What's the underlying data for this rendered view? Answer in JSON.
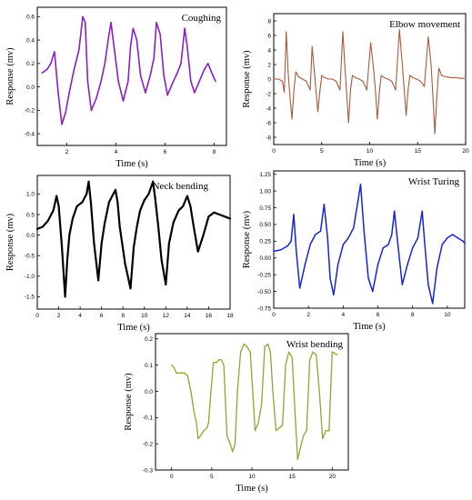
{
  "chart_data": [
    {
      "type": "line",
      "title": "Coughing",
      "xlabel": "Time (s)",
      "ylabel": "Response (mv)",
      "xlim": [
        0.8,
        8.5
      ],
      "ylim": [
        -0.5,
        0.68
      ],
      "xticks": [
        2,
        4,
        6,
        8
      ],
      "yticks": [
        -0.4,
        -0.2,
        0.0,
        0.2,
        0.4,
        0.6
      ],
      "ytick_labels": [
        "-0.4",
        "-0.2",
        "0.0",
        "0.2",
        "0.4",
        "0.6"
      ],
      "color": "#8a1fc9",
      "stroke": 1.6,
      "series": [
        {
          "x": [
            1.0,
            1.2,
            1.35,
            1.5,
            1.65,
            1.8,
            1.95,
            2.1,
            2.3,
            2.5,
            2.65,
            2.75,
            2.85,
            3.0,
            3.2,
            3.4,
            3.55,
            3.7,
            3.8,
            3.95,
            4.1,
            4.3,
            4.5,
            4.6,
            4.7,
            4.85,
            5.0,
            5.2,
            5.4,
            5.55,
            5.65,
            5.8,
            5.95,
            6.1,
            6.3,
            6.5,
            6.65,
            6.8,
            6.9,
            7.05,
            7.2,
            7.4,
            7.6,
            7.75,
            7.9,
            8.05
          ],
          "y": [
            0.12,
            0.15,
            0.2,
            0.3,
            -0.05,
            -0.32,
            -0.22,
            -0.05,
            0.15,
            0.32,
            0.6,
            0.55,
            0.05,
            -0.2,
            -0.1,
            0.05,
            0.2,
            0.42,
            0.55,
            0.3,
            0.05,
            -0.12,
            0.05,
            0.35,
            0.5,
            0.4,
            0.1,
            -0.05,
            0.1,
            0.25,
            0.55,
            0.45,
            0.1,
            -0.07,
            0.03,
            0.12,
            0.2,
            0.5,
            0.35,
            0.05,
            -0.05,
            0.05,
            0.15,
            0.2,
            0.12,
            0.05
          ]
        }
      ]
    },
    {
      "type": "line",
      "title": "Elbow movement",
      "xlabel": "Time (s)",
      "ylabel": "Response (mv)",
      "xlim": [
        0,
        20
      ],
      "ylim": [
        -9,
        9
      ],
      "xticks": [
        0,
        5,
        10,
        15,
        20
      ],
      "yticks": [
        -8,
        -6,
        -4,
        -2,
        0,
        2,
        4,
        6,
        8
      ],
      "ytick_labels": [
        "-8",
        "-6",
        "-4",
        "-2",
        "0",
        "2",
        "4",
        "6",
        "8"
      ],
      "color": "#a65a3a",
      "stroke": 1.1,
      "series": [
        {
          "x": [
            0.0,
            0.5,
            0.9,
            1.1,
            1.3,
            1.5,
            1.7,
            1.9,
            2.1,
            2.3,
            2.6,
            3.0,
            3.4,
            3.8,
            4.0,
            4.2,
            4.4,
            4.6,
            4.8,
            5.0,
            5.3,
            5.7,
            6.1,
            6.5,
            6.9,
            7.2,
            7.4,
            7.6,
            7.8,
            8.0,
            8.2,
            8.5,
            8.9,
            9.3,
            9.7,
            10.1,
            10.4,
            10.6,
            10.8,
            11.0,
            11.2,
            11.5,
            11.9,
            12.3,
            12.7,
            13.1,
            13.4,
            13.6,
            13.8,
            14.0,
            14.2,
            14.5,
            14.9,
            15.3,
            15.7,
            16.1,
            16.4,
            16.6,
            16.8,
            17.0,
            17.2,
            17.5,
            18.0,
            18.5,
            19.0,
            19.5,
            20.0
          ],
          "y": [
            0.0,
            0.0,
            -0.3,
            -1.8,
            6.5,
            1.0,
            -2.5,
            -5.5,
            -1.5,
            1.0,
            0.3,
            0.0,
            -0.3,
            -1.5,
            4.5,
            1.5,
            -1.5,
            -4.5,
            -1.8,
            0.5,
            0.2,
            0.0,
            0.0,
            -0.3,
            -1.5,
            6.5,
            2.0,
            -2.0,
            -6.0,
            -1.5,
            0.5,
            0.2,
            0.0,
            -0.3,
            -1.5,
            5.0,
            1.5,
            -1.5,
            -5.5,
            -1.8,
            0.5,
            0.2,
            0.0,
            -0.3,
            -1.5,
            6.8,
            2.0,
            -1.5,
            -5.0,
            -1.5,
            0.5,
            0.2,
            0.0,
            -0.3,
            -1.0,
            5.8,
            2.0,
            -2.5,
            -7.5,
            -2.5,
            1.5,
            0.5,
            0.3,
            0.2,
            0.2,
            0.1,
            0.1
          ]
        }
      ]
    },
    {
      "type": "line",
      "title": "Neck bending",
      "xlabel": "Time (s)",
      "ylabel": "Response (mv)",
      "xlim": [
        0,
        18
      ],
      "ylim": [
        -1.8,
        1.45
      ],
      "xticks": [
        0,
        2,
        4,
        6,
        8,
        10,
        12,
        14,
        16,
        18
      ],
      "yticks": [
        -1.5,
        -1.0,
        -0.5,
        0.0,
        0.5,
        1.0
      ],
      "ytick_labels": [
        "-1.5",
        "-1.0",
        "-0.5",
        "0.0",
        "0.5",
        "1.0"
      ],
      "color": "#000000",
      "stroke": 2.2,
      "series": [
        {
          "x": [
            0.0,
            0.5,
            1.0,
            1.5,
            1.8,
            2.0,
            2.3,
            2.6,
            2.8,
            3.0,
            3.3,
            3.7,
            4.2,
            4.6,
            4.8,
            5.0,
            5.3,
            5.7,
            6.0,
            6.3,
            6.7,
            7.0,
            7.3,
            7.5,
            7.7,
            8.2,
            8.7,
            9.0,
            9.3,
            9.6,
            10.0,
            10.4,
            10.8,
            11.0,
            11.3,
            11.6,
            12.0,
            12.3,
            12.7,
            13.2,
            13.6,
            14.0,
            14.3,
            14.6,
            15.0,
            15.5,
            16.0,
            16.5,
            17.0,
            17.5,
            18.0
          ],
          "y": [
            0.15,
            0.2,
            0.35,
            0.6,
            0.95,
            0.7,
            -0.3,
            -1.5,
            -0.6,
            0.0,
            0.4,
            0.7,
            0.8,
            1.0,
            1.3,
            0.8,
            -0.2,
            -1.1,
            -0.2,
            0.3,
            0.8,
            0.95,
            1.1,
            0.8,
            0.2,
            -0.7,
            -1.3,
            -0.3,
            0.2,
            0.6,
            0.85,
            1.0,
            1.3,
            0.9,
            0.2,
            -0.6,
            -1.2,
            -0.2,
            0.3,
            0.6,
            0.7,
            0.95,
            0.7,
            0.2,
            -0.4,
            0.0,
            0.45,
            0.55,
            0.5,
            0.45,
            0.4
          ]
        }
      ]
    },
    {
      "type": "line",
      "title": "Wrist Turing",
      "xlabel": "Time (s)",
      "ylabel": "Response (mv)",
      "xlim": [
        0,
        11
      ],
      "ylim": [
        -0.75,
        1.3
      ],
      "xticks": [
        0,
        2,
        4,
        6,
        8,
        10
      ],
      "yticks": [
        -0.75,
        -0.5,
        -0.25,
        0.0,
        0.25,
        0.5,
        0.75,
        1.0,
        1.25
      ],
      "ytick_labels": [
        "-0.75",
        "-0.50",
        "-0.25",
        "0.00",
        "0.25",
        "0.50",
        "0.75",
        "1.00",
        "1.25"
      ],
      "color": "#1424d8",
      "stroke": 1.5,
      "series": [
        {
          "x": [
            0.0,
            0.4,
            0.8,
            1.0,
            1.15,
            1.3,
            1.5,
            1.8,
            2.1,
            2.4,
            2.7,
            2.9,
            3.1,
            3.25,
            3.45,
            3.7,
            4.0,
            4.3,
            4.6,
            4.85,
            5.0,
            5.2,
            5.45,
            5.7,
            6.0,
            6.3,
            6.6,
            6.8,
            6.95,
            7.15,
            7.4,
            7.7,
            8.0,
            8.3,
            8.55,
            8.7,
            8.9,
            9.15,
            9.4,
            9.7,
            10.0,
            10.3,
            10.6,
            10.9,
            11.0
          ],
          "y": [
            0.1,
            0.12,
            0.18,
            0.25,
            0.65,
            0.1,
            -0.45,
            -0.1,
            0.2,
            0.35,
            0.4,
            0.8,
            0.3,
            -0.3,
            -0.55,
            -0.1,
            0.2,
            0.3,
            0.45,
            0.85,
            1.1,
            0.4,
            -0.3,
            -0.5,
            -0.1,
            0.15,
            0.2,
            0.35,
            0.7,
            0.2,
            -0.4,
            -0.1,
            0.15,
            0.3,
            0.7,
            0.2,
            -0.4,
            -0.68,
            -0.15,
            0.2,
            0.3,
            0.35,
            0.3,
            0.25,
            0.22
          ]
        }
      ]
    },
    {
      "type": "line",
      "title": "Wrist bending",
      "xlabel": "Time (s)",
      "ylabel": "Response (mv)",
      "xlim": [
        -2,
        22
      ],
      "ylim": [
        -0.3,
        0.22
      ],
      "xticks": [
        0,
        5,
        10,
        15,
        20
      ],
      "yticks": [
        -0.3,
        -0.2,
        -0.1,
        0.0,
        0.1,
        0.2
      ],
      "ytick_labels": [
        "-0.3",
        "-0.2",
        "-0.1",
        "0.0",
        "0.1",
        "0.2"
      ],
      "color": "#9aa030",
      "stroke": 1.3,
      "series": [
        {
          "x": [
            0.0,
            0.3,
            0.6,
            1.2,
            1.6,
            2.0,
            2.4,
            2.8,
            3.1,
            3.3,
            3.6,
            4.0,
            4.4,
            4.6,
            4.9,
            5.2,
            5.6,
            5.9,
            6.2,
            6.5,
            6.9,
            7.3,
            7.6,
            7.9,
            8.2,
            8.6,
            9.0,
            9.4,
            9.8,
            10.1,
            10.4,
            10.8,
            11.2,
            11.6,
            12.0,
            12.3,
            12.6,
            13.0,
            13.4,
            13.8,
            14.2,
            14.6,
            15.0,
            15.4,
            15.7,
            16.0,
            16.4,
            16.8,
            17.2,
            17.6,
            18.0,
            18.4,
            18.8,
            19.2,
            19.6,
            20.0,
            20.6
          ],
          "y": [
            0.1,
            0.09,
            0.07,
            0.07,
            0.07,
            0.06,
            0.0,
            -0.08,
            -0.12,
            -0.18,
            -0.17,
            -0.15,
            -0.14,
            -0.12,
            0.0,
            0.11,
            0.11,
            0.12,
            0.12,
            0.1,
            -0.17,
            -0.2,
            -0.23,
            -0.2,
            0.0,
            0.15,
            0.18,
            0.17,
            0.15,
            0.0,
            -0.15,
            -0.12,
            -0.05,
            0.17,
            0.18,
            0.15,
            0.0,
            -0.15,
            -0.14,
            -0.13,
            0.1,
            0.15,
            0.13,
            -0.1,
            -0.26,
            -0.22,
            -0.17,
            -0.15,
            0.12,
            0.15,
            0.14,
            0.0,
            -0.18,
            -0.15,
            -0.15,
            0.15,
            0.14
          ]
        }
      ]
    }
  ]
}
